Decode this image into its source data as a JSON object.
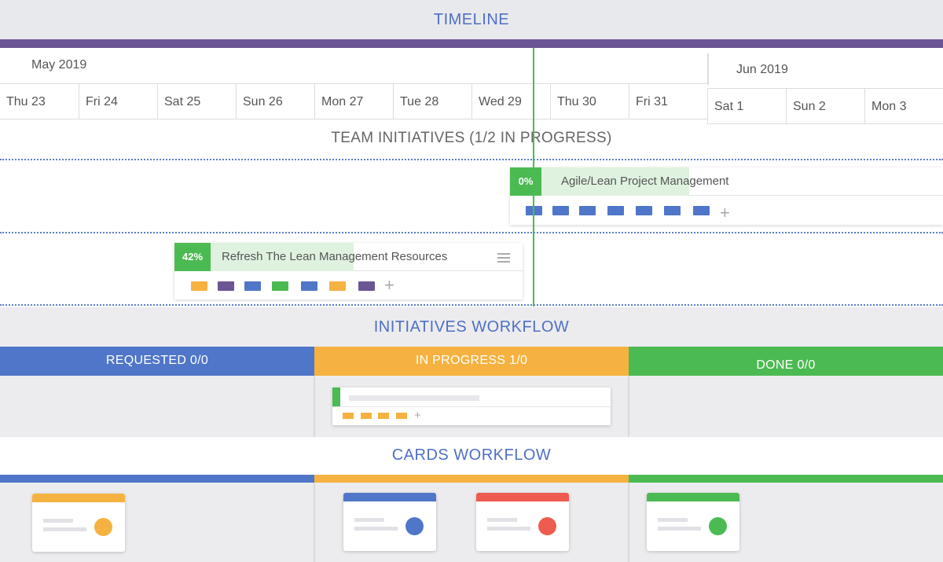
{
  "timeline": {
    "title": "TIMELINE",
    "months": [
      "May 2019",
      "Jun 2019"
    ],
    "days": [
      "Thu 23",
      "Fri 24",
      "Sat 25",
      "Sun 26",
      "Mon 27",
      "Tue 28",
      "Wed 29",
      "Thu 30",
      "Fri 31",
      "Sat 1",
      "Sun 2",
      "Mon 3"
    ]
  },
  "team_initiatives": {
    "title": "TEAM INITIATIVES (1/2 IN PROGRESS)",
    "items": [
      {
        "progress_label": "0%",
        "progress": 0,
        "title": "Agile/Lean Project Management",
        "tag_colors": [
          "#4f76c8",
          "#4f76c8",
          "#4f76c8",
          "#4f76c8",
          "#4f76c8",
          "#4f76c8",
          "#4f76c8"
        ]
      },
      {
        "progress_label": "42%",
        "progress": 42,
        "title": "Refresh The Lean  Management Resources",
        "tag_colors": [
          "#f5b240",
          "#6b5595",
          "#4f76c8",
          "#4cba52",
          "#4f76c8",
          "#f5b240",
          "#6b5595"
        ]
      }
    ]
  },
  "initiatives_workflow": {
    "title": "INITIATIVES WORKFLOW",
    "columns": [
      {
        "label": "REQUESTED 0/0",
        "color": "#4f76c8"
      },
      {
        "label": "IN PROGRESS 1/0",
        "color": "#f5b240"
      },
      {
        "label": "DONE 0/0",
        "color": "#4cba52"
      }
    ]
  },
  "cards_workflow": {
    "title": "CARDS WORKFLOW",
    "colors": {
      "requested": "#4f76c8",
      "in_progress": "#f5b240",
      "done": "#4cba52",
      "red": "#ee5b4f"
    }
  }
}
